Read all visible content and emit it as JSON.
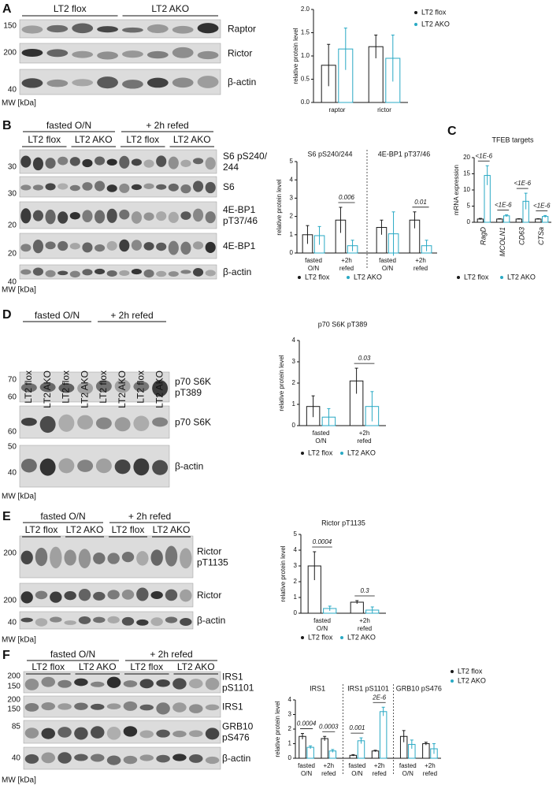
{
  "panels": [
    {
      "letter": "A",
      "genotypes": [
        "LT2 flox",
        "LT2 AKO"
      ],
      "rows": [
        {
          "label": [
            "Raptor"
          ],
          "mw": [
            150
          ]
        },
        {
          "label": [
            "Rictor"
          ],
          "mw": [
            200
          ]
        },
        {
          "label": [
            "β-actin"
          ],
          "mw": [
            40
          ]
        }
      ],
      "mw_unit": "MW [kDa]",
      "chart": {
        "type": "bar",
        "ylabel": "relative protein level",
        "categories": [
          [
            "raptor"
          ],
          [
            "rictor"
          ]
        ],
        "series": [
          {
            "name": "LT2 flox",
            "color": "#1a1a1a",
            "values": [
              0.8,
              1.2
            ],
            "errors": [
              0.45,
              0.25
            ]
          },
          {
            "name": "LT2 AKO",
            "color": "#29a9c4",
            "values": [
              1.15,
              0.95
            ],
            "errors": [
              0.45,
              0.5
            ]
          }
        ],
        "ylim": [
          0,
          2
        ],
        "yticks": [
          {
            "value": 0,
            "label": "0.0"
          },
          {
            "value": 0.5,
            "label": "0.5"
          },
          {
            "value": 1,
            "label": "1.0"
          },
          {
            "value": 1.5,
            "label": "1.5"
          },
          {
            "value": 2,
            "label": "2.0"
          }
        ]
      }
    },
    {
      "letter": "B",
      "conditions": [
        "fasted O/N",
        "+ 2h refed"
      ],
      "genotypes": [
        "LT2 flox",
        "LT2 AKO",
        "LT2 flox",
        "LT2 AKO"
      ],
      "rows": [
        {
          "label": [
            "S6 pS240/",
            "244"
          ],
          "mw": [
            30
          ]
        },
        {
          "label": [
            "S6"
          ],
          "mw": [
            30
          ]
        },
        {
          "label": [
            "4E-BP1",
            "pT37/46"
          ],
          "mw": [
            20
          ]
        },
        {
          "label": [
            "4E-BP1"
          ],
          "mw": [
            20
          ]
        },
        {
          "label": [
            "β-actin"
          ],
          "mw": [
            40
          ]
        }
      ],
      "mw_unit": "MW [kDa]",
      "chart": {
        "type": "bar",
        "ylabel": "relative protein level",
        "panel_titles": [
          "S6 pS240/244",
          "4E-BP1 pT37/46"
        ],
        "categories": [
          [
            "fasted",
            "O/N"
          ],
          [
            "+2h",
            "refed"
          ],
          [
            "fasted",
            "O/N"
          ],
          [
            "+2h",
            "refed"
          ]
        ],
        "series": [
          {
            "name": "LT2 flox",
            "color": "#1a1a1a",
            "values": [
              1.0,
              1.8,
              1.4,
              1.8
            ],
            "errors": [
              0.5,
              0.7,
              0.4,
              0.45
            ]
          },
          {
            "name": "LT2 AKO",
            "color": "#29a9c4",
            "values": [
              0.95,
              0.4,
              1.05,
              0.4
            ],
            "errors": [
              0.5,
              0.3,
              1.2,
              0.3
            ]
          }
        ],
        "annotations": [
          "0.006",
          "0.01"
        ],
        "ylim": [
          0,
          5
        ],
        "yticks": [
          0,
          1,
          2,
          3,
          4,
          5
        ]
      }
    },
    {
      "letter": "C",
      "chart": {
        "type": "bar",
        "title": "TFEB targets",
        "ylabel": "mRNA expression",
        "categories": [
          [
            "RagD"
          ],
          [
            "MCOLN1"
          ],
          [
            "CD63"
          ],
          [
            "CTSa"
          ]
        ],
        "series": [
          {
            "name": "LT2 flox",
            "color": "#1a1a1a",
            "values": [
              1,
              1,
              1,
              1
            ],
            "errors": [
              0.2,
              0.1,
              0.1,
              0.1
            ]
          },
          {
            "name": "LT2 AKO",
            "color": "#29a9c4",
            "values": [
              14.5,
              2,
              6.5,
              1.8
            ],
            "errors": [
              3,
              0.3,
              2.5,
              0.3
            ]
          }
        ],
        "annotations": [
          "<1E-6",
          "<1E-6",
          "<1E-6",
          "<1E-6"
        ],
        "ylim": [
          0,
          20
        ],
        "yticks": [
          0,
          5,
          10,
          15,
          20
        ]
      }
    },
    {
      "letter": "D",
      "conditions": [
        "fasted O/N",
        "+ 2h refed"
      ],
      "lanes": [
        "LT2 flox",
        "LT2 AKO",
        "LT2 flox",
        "LT2 AKO",
        "LT2 flox",
        "LT2 AKO",
        "LT2 flox",
        "LT2 AKO"
      ],
      "rows": [
        {
          "label": [
            "p70 S6K",
            "pT389"
          ],
          "mw": [
            70,
            60
          ]
        },
        {
          "label": [
            "p70 S6K"
          ],
          "mw": [
            60
          ]
        },
        {
          "label": [
            "β-actin"
          ],
          "mw": [
            50,
            40
          ]
        }
      ],
      "mw_unit": "MW [kDa]",
      "chart": {
        "type": "bar",
        "title": "p70 S6K pT389",
        "ylabel": "relative protein level",
        "categories": [
          [
            "fasted",
            "O/N"
          ],
          [
            "+2h",
            "refed"
          ]
        ],
        "series": [
          {
            "name": "LT2 flox",
            "color": "#1a1a1a",
            "values": [
              0.9,
              2.1
            ],
            "errors": [
              0.5,
              0.6
            ]
          },
          {
            "name": "LT2 AKO",
            "color": "#29a9c4",
            "values": [
              0.4,
              0.9
            ],
            "errors": [
              0.4,
              0.7
            ]
          }
        ],
        "annotations": [
          "0.03"
        ],
        "ylim": [
          0,
          4
        ],
        "yticks": [
          0,
          1,
          2,
          3,
          4
        ]
      }
    },
    {
      "letter": "E",
      "conditions": [
        "fasted O/N",
        "+ 2h refed"
      ],
      "genotypes": [
        "LT2 flox",
        "LT2 AKO",
        "LT2 flox",
        "LT2 AKO"
      ],
      "rows": [
        {
          "label": [
            "Rictor",
            "pT1135"
          ],
          "mw": [
            200
          ]
        },
        {
          "label": [
            "Rictor"
          ],
          "mw": [
            200
          ]
        },
        {
          "label": [
            "β-actin"
          ],
          "mw": [
            40
          ]
        }
      ],
      "mw_unit": "MW [kDa]",
      "chart": {
        "type": "bar",
        "title": "Rictor pT1135",
        "ylabel": "relative protein level",
        "categories": [
          [
            "fasted",
            "O/N"
          ],
          [
            "+2h",
            "refed"
          ]
        ],
        "series": [
          {
            "name": "LT2 flox",
            "color": "#1a1a1a",
            "values": [
              3.0,
              0.7
            ],
            "errors": [
              0.9,
              0.1
            ]
          },
          {
            "name": "LT2 AKO",
            "color": "#29a9c4",
            "values": [
              0.3,
              0.2
            ],
            "errors": [
              0.15,
              0.2
            ]
          }
        ],
        "annotations": [
          "0.0004",
          "0.3"
        ],
        "ylim": [
          0,
          5
        ],
        "yticks": [
          0,
          1,
          2,
          3,
          4,
          5
        ]
      }
    },
    {
      "letter": "F",
      "conditions": [
        "fasted O/N",
        "+ 2h refed"
      ],
      "genotypes": [
        "LT2 flox",
        "LT2 AKO",
        "LT2 flox",
        "LT2 AKO"
      ],
      "rows": [
        {
          "label": [
            "IRS1",
            "pS1101"
          ],
          "mw": [
            200,
            150
          ]
        },
        {
          "label": [
            "IRS1"
          ],
          "mw": [
            200,
            150
          ]
        },
        {
          "label": [
            "GRB10",
            "pS476"
          ],
          "mw": [
            85
          ]
        },
        {
          "label": [
            "β-actin"
          ],
          "mw": [
            40
          ]
        }
      ],
      "mw_unit": "MW [kDa]",
      "chart": {
        "type": "bar",
        "ylabel": "relative protein level",
        "panel_titles": [
          "IRS1",
          "IRS1 pS1101",
          "GRB10 pS476"
        ],
        "categories": [
          [
            "fasted",
            "O/N"
          ],
          [
            "+2h",
            "refed"
          ],
          [
            "fasted",
            "O/N"
          ],
          [
            "+2h",
            "refed"
          ],
          [
            "fasted",
            "O/N"
          ],
          [
            "+2h",
            "refed"
          ]
        ],
        "series": [
          {
            "name": "LT2 flox",
            "color": "#1a1a1a",
            "values": [
              1.5,
              1.35,
              0.2,
              0.5,
              1.5,
              1.0
            ],
            "errors": [
              0.2,
              0.15,
              0.05,
              0.05,
              0.4,
              0.1
            ]
          },
          {
            "name": "LT2 AKO",
            "color": "#29a9c4",
            "values": [
              0.75,
              0.5,
              1.2,
              3.2,
              0.95,
              0.65
            ],
            "errors": [
              0.1,
              0.1,
              0.2,
              0.3,
              0.3,
              0.35
            ]
          }
        ],
        "annotations": [
          "0.0004",
          "0.0003",
          "0.001",
          "2E-6"
        ],
        "ylim": [
          0,
          4
        ],
        "yticks": [
          0,
          1,
          2,
          3,
          4
        ]
      }
    }
  ]
}
